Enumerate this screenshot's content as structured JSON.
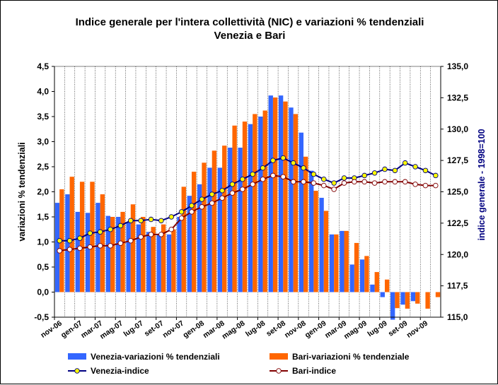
{
  "chart_data": {
    "type": "bar+line",
    "title": "Indice generale per l'intera collettività (NIC) e variazioni % tendenziali",
    "subtitle": "Venezia e Bari",
    "ylabel_left": "variazioni % tendenziali",
    "ylabel_right": "indice generale - 1998=100",
    "ylim_left": [
      -0.5,
      4.5
    ],
    "ylim_right": [
      115.0,
      135.0
    ],
    "yticks_left": [
      "-0,5",
      "0,0",
      "0,5",
      "1,0",
      "1,5",
      "2,0",
      "2,5",
      "3,0",
      "3,5",
      "4,0",
      "4,5"
    ],
    "yticks_right": [
      "115,0",
      "117,5",
      "120,0",
      "122,5",
      "125,0",
      "127,5",
      "130,0",
      "132,5",
      "135,0"
    ],
    "categories": [
      "nov-06",
      "dic-06",
      "gen-07",
      "feb-07",
      "mar-07",
      "apr-07",
      "mag-07",
      "giu-07",
      "lug-07",
      "ago-07",
      "set-07",
      "ott-07",
      "nov-07",
      "dic-07",
      "gen-08",
      "feb-08",
      "mar-08",
      "apr-08",
      "mag-08",
      "giu-08",
      "lug-08",
      "ago-08",
      "set-08",
      "ott-08",
      "nov-08",
      "dic-08",
      "gen-09",
      "feb-09",
      "mar-09",
      "apr-09",
      "mag-09",
      "giu-09",
      "lug-09",
      "ago-09",
      "set-09",
      "ott-09",
      "nov-09",
      "dic-09"
    ],
    "xtick_labels": [
      "nov-06",
      "gen-07",
      "mar-07",
      "mag-07",
      "lug-07",
      "set-07",
      "nov-07",
      "gen-08",
      "mar-08",
      "mag-08",
      "lug-08",
      "set-08",
      "nov-08",
      "gen-09",
      "mar-09",
      "mag-09",
      "lug-09",
      "set-09",
      "nov-09"
    ],
    "series": [
      {
        "name": "Venezia-variazioni % tendenziali",
        "type": "bar",
        "axis": "left",
        "color": "#3366ff",
        "values": [
          1.78,
          1.95,
          1.6,
          1.58,
          1.78,
          1.52,
          1.5,
          1.4,
          1.35,
          1.2,
          1.15,
          1.15,
          1.5,
          1.92,
          2.15,
          2.48,
          2.48,
          2.88,
          2.88,
          3.35,
          3.5,
          3.92,
          3.92,
          3.68,
          3.18,
          2.42,
          1.88,
          1.15,
          1.22,
          0.55,
          0.65,
          0.15,
          -0.1,
          -0.55,
          -0.25,
          -0.18,
          0.0,
          0.0
        ]
      },
      {
        "name": "Bari-variazioni % tendenziale",
        "type": "bar",
        "axis": "left",
        "color": "#ff6600",
        "values": [
          2.05,
          2.3,
          2.2,
          2.2,
          1.95,
          1.5,
          1.6,
          1.75,
          1.5,
          1.3,
          1.35,
          1.25,
          2.1,
          2.4,
          2.58,
          2.82,
          2.92,
          3.32,
          3.4,
          3.55,
          3.62,
          3.88,
          3.8,
          3.55,
          2.7,
          2.02,
          1.62,
          1.15,
          1.22,
          0.98,
          0.72,
          0.4,
          0.25,
          -0.32,
          -0.33,
          -0.23,
          -0.33,
          -0.1
        ]
      },
      {
        "name": "Venezia-indice",
        "type": "line",
        "axis": "right",
        "color": "#000080",
        "marker": "#ffff00",
        "values": [
          121.1,
          121.1,
          121.3,
          121.7,
          121.8,
          122.0,
          122.3,
          122.7,
          122.7,
          122.8,
          122.7,
          123.0,
          123.4,
          123.9,
          124.4,
          124.8,
          125.1,
          125.6,
          126.0,
          126.4,
          126.9,
          127.5,
          127.7,
          127.3,
          126.9,
          126.4,
          126.0,
          125.7,
          126.1,
          126.1,
          126.3,
          126.5,
          126.8,
          126.7,
          127.3,
          127.0,
          126.7,
          126.3
        ]
      },
      {
        "name": "Bari-indice",
        "type": "line",
        "axis": "right",
        "color": "#800000",
        "marker": "#ffffff",
        "values": [
          120.3,
          120.4,
          120.5,
          120.6,
          120.7,
          120.7,
          120.9,
          121.1,
          121.4,
          121.6,
          121.6,
          122.0,
          122.9,
          123.4,
          123.8,
          124.1,
          124.5,
          124.9,
          125.2,
          125.6,
          126.0,
          126.3,
          126.2,
          125.8,
          125.8,
          125.7,
          125.5,
          125.2,
          125.7,
          125.8,
          125.8,
          125.7,
          125.8,
          125.8,
          125.8,
          125.6,
          125.5,
          125.5
        ]
      }
    ],
    "legend_position": "bottom",
    "grid": "vertical"
  }
}
